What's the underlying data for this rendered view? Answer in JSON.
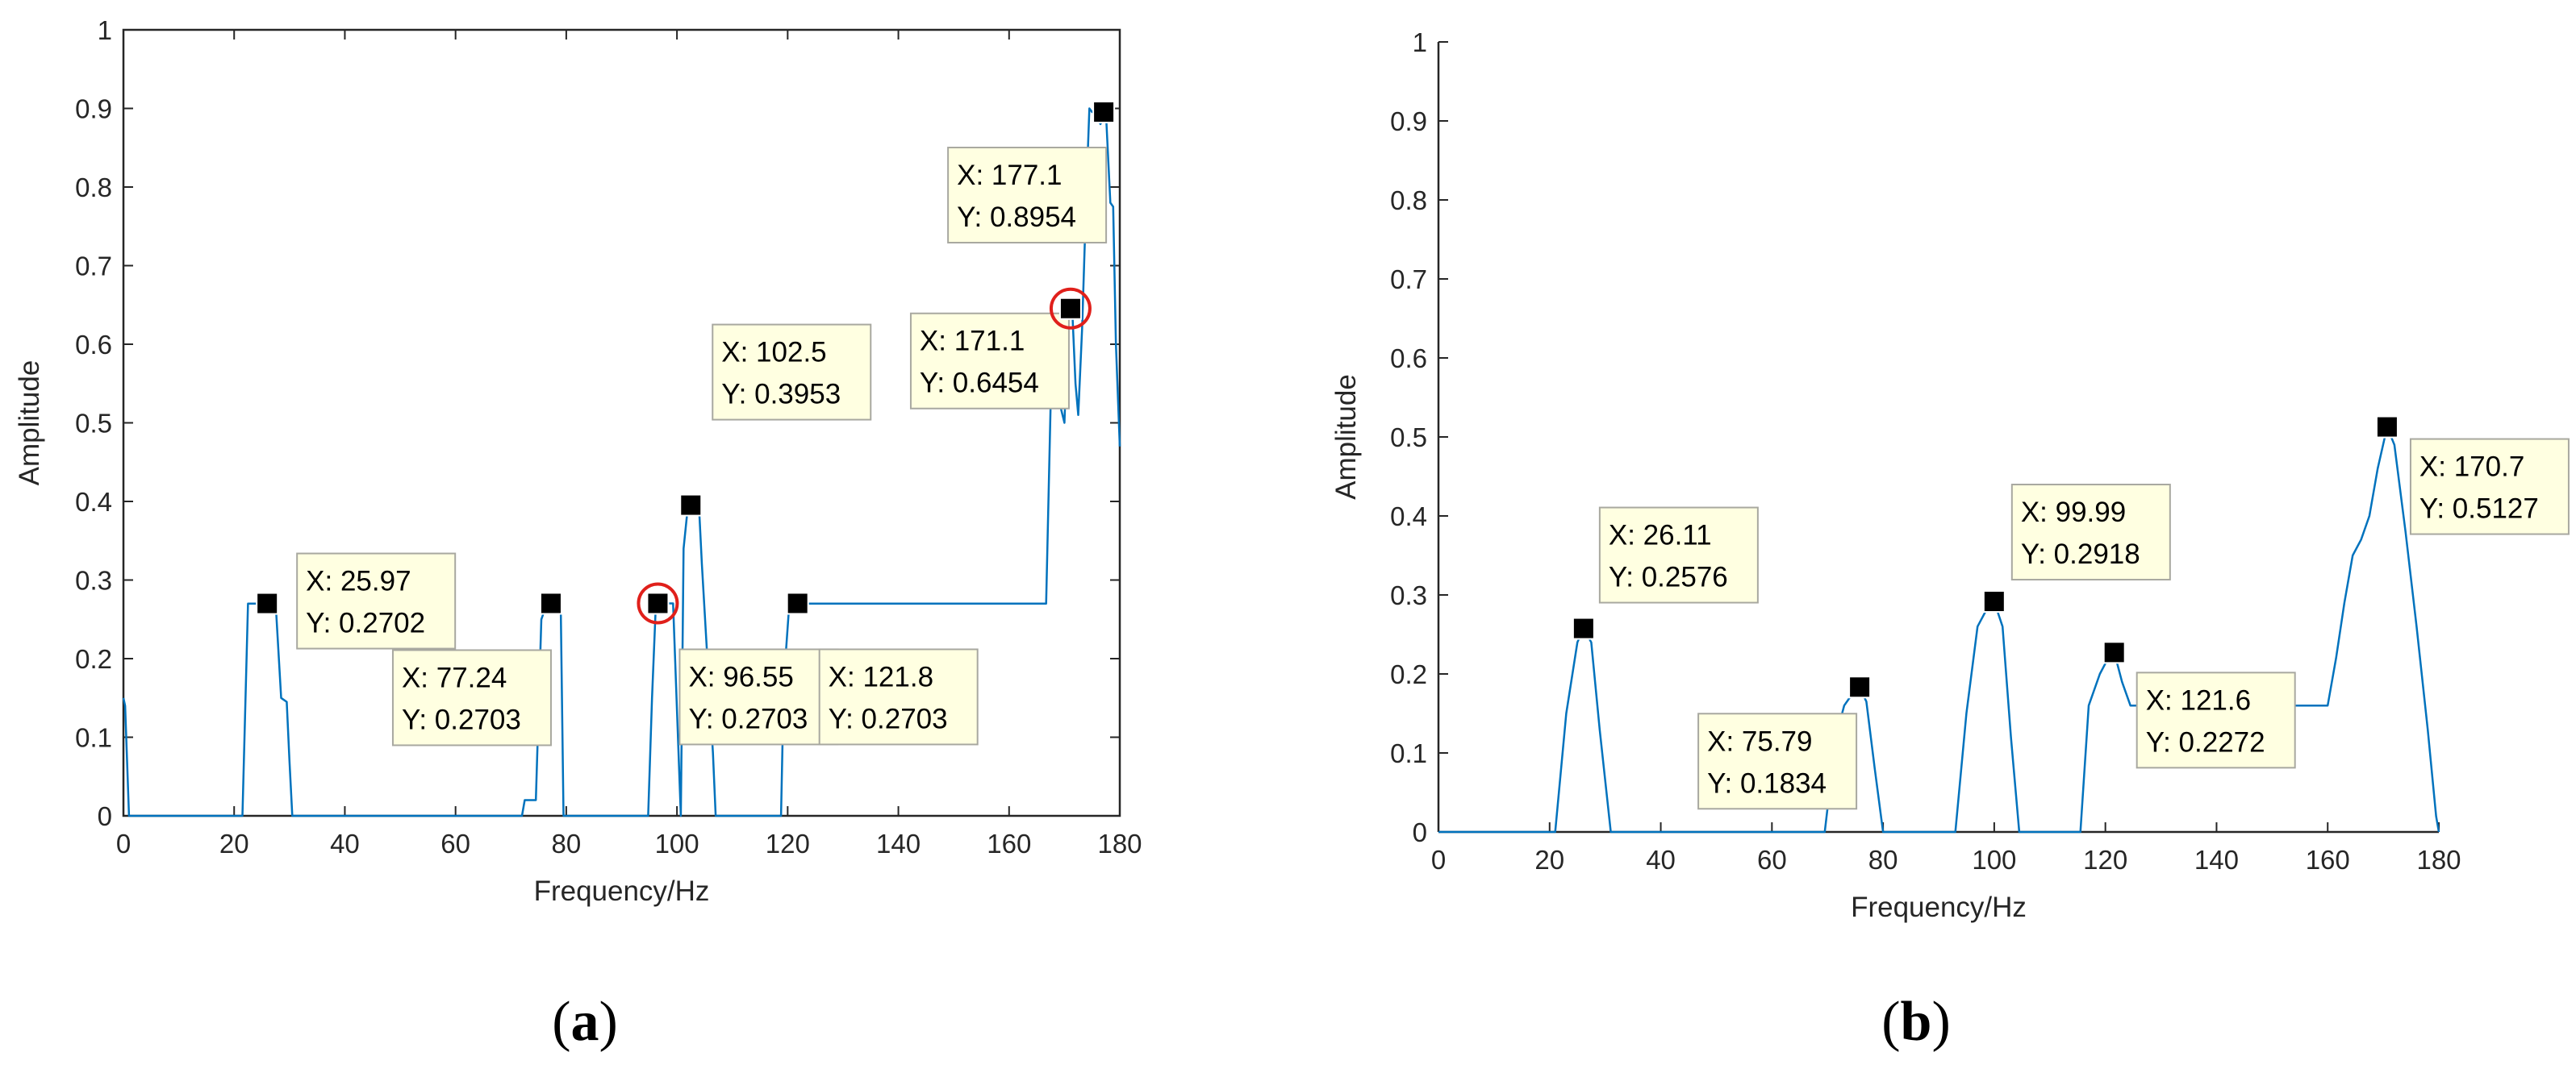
{
  "chart_data": [
    {
      "type": "line",
      "panel_label": "(a)",
      "xlabel": "Frequency/Hz",
      "ylabel": "Amplitude",
      "xlim": [
        0,
        180
      ],
      "ylim": [
        0,
        1
      ],
      "xticks": [
        0,
        20,
        40,
        60,
        80,
        100,
        120,
        140,
        160,
        180
      ],
      "yticks": [
        0,
        0.1,
        0.2,
        0.3,
        0.4,
        0.5,
        0.6,
        0.7,
        0.8,
        0.9,
        1
      ],
      "grid": false,
      "line_color": "#0072BD",
      "series": [
        {
          "x": [
            0,
            0.3,
            1,
            21.5,
            22.5,
            24,
            25,
            27.5,
            28.5,
            29.5,
            30,
            30.5,
            72,
            72.5,
            74.5,
            75.5,
            76.5,
            78,
            79,
            79.5,
            94.8,
            95.5,
            96.2,
            97.2,
            99.3,
            100.7,
            101.2,
            102,
            103,
            104,
            104.5,
            105.5,
            106.5,
            107,
            118.8,
            119.3,
            120.3,
            121,
            122.3,
            124,
            130,
            166.7,
            167.5,
            168.5,
            169.3,
            170,
            170.7,
            171.4,
            172,
            172.5,
            173.2,
            174,
            174.5,
            175,
            175.7,
            176.5,
            177.5,
            178.3,
            178.8,
            179.3,
            180
          ],
          "y": [
            0.15,
            0.14,
            0,
            0,
            0.27,
            0.27,
            0.27,
            0.27,
            0.15,
            0.145,
            0.07,
            0,
            0,
            0.02,
            0.02,
            0.25,
            0.27,
            0.27,
            0.27,
            0,
            0,
            0.15,
            0.2703,
            0.2703,
            0.2703,
            0,
            0.34,
            0.3953,
            0.3953,
            0.39,
            0.32,
            0.2,
            0.08,
            0,
            0,
            0.17,
            0.2703,
            0.2703,
            0.2703,
            0.27,
            0.27,
            0.27,
            0.52,
            0.52,
            0.52,
            0.5,
            0.6454,
            0.6454,
            0.55,
            0.51,
            0.62,
            0.8,
            0.9,
            0.8954,
            0.8954,
            0.88,
            0.8954,
            0.78,
            0.775,
            0.6,
            0.47
          ]
        }
      ],
      "datatips": [
        {
          "x": 25.97,
          "y": 0.2702,
          "label_x": "X: 25.97",
          "label_y": "Y: 0.2702",
          "circled": false
        },
        {
          "x": 77.24,
          "y": 0.2703,
          "label_x": "X: 77.24",
          "label_y": "Y: 0.2703",
          "circled": false
        },
        {
          "x": 96.55,
          "y": 0.2703,
          "label_x": "X: 96.55",
          "label_y": "Y: 0.2703",
          "circled": true
        },
        {
          "x": 102.5,
          "y": 0.3953,
          "label_x": "X: 102.5",
          "label_y": "Y: 0.3953",
          "circled": false
        },
        {
          "x": 121.8,
          "y": 0.2703,
          "label_x": "X: 121.8",
          "label_y": "Y: 0.2703",
          "circled": false
        },
        {
          "x": 171.1,
          "y": 0.6454,
          "label_x": "X: 171.1",
          "label_y": "Y: 0.6454",
          "circled": true
        },
        {
          "x": 177.1,
          "y": 0.8954,
          "label_x": "X: 177.1",
          "label_y": "Y: 0.8954",
          "circled": false
        }
      ]
    },
    {
      "type": "line",
      "panel_label": "(b)",
      "xlabel": "Frequency/Hz",
      "ylabel": "Amplitude",
      "xlim": [
        0,
        180
      ],
      "ylim": [
        0,
        1
      ],
      "xticks": [
        0,
        20,
        40,
        60,
        80,
        100,
        120,
        140,
        160,
        180
      ],
      "yticks": [
        0,
        0.1,
        0.2,
        0.3,
        0.4,
        0.5,
        0.6,
        0.7,
        0.8,
        0.9,
        1
      ],
      "grid": false,
      "line_color": "#0072BD",
      "series": [
        {
          "x": [
            0,
            21,
            23,
            25,
            26.11,
            27.5,
            29,
            31,
            69.5,
            71.5,
            73,
            74.5,
            75.79,
            77,
            78.5,
            80,
            93,
            95,
            97,
            98.5,
            99.99,
            101.5,
            103,
            104.5,
            115.5,
            117,
            119,
            120.5,
            121.6,
            123,
            124.5,
            158,
            160,
            161.5,
            163,
            164.5,
            166,
            167.5,
            169,
            170.7,
            172,
            174,
            176,
            178,
            179.5,
            180
          ],
          "y": [
            0,
            0,
            0.15,
            0.24,
            0.2576,
            0.24,
            0.13,
            0,
            0,
            0.12,
            0.16,
            0.175,
            0.1834,
            0.165,
            0.08,
            0,
            0,
            0.15,
            0.26,
            0.28,
            0.2918,
            0.26,
            0.12,
            0,
            0,
            0.16,
            0.2,
            0.22,
            0.2272,
            0.19,
            0.16,
            0.16,
            0.16,
            0.22,
            0.29,
            0.35,
            0.37,
            0.4,
            0.46,
            0.5127,
            0.49,
            0.38,
            0.26,
            0.13,
            0.02,
            0
          ]
        }
      ],
      "datatips": [
        {
          "x": 26.11,
          "y": 0.2576,
          "label_x": "X: 26.11",
          "label_y": "Y: 0.2576",
          "circled": false
        },
        {
          "x": 75.79,
          "y": 0.1834,
          "label_x": "X: 75.79",
          "label_y": "Y: 0.1834",
          "circled": false
        },
        {
          "x": 99.99,
          "y": 0.2918,
          "label_x": "X: 99.99",
          "label_y": "Y: 0.2918",
          "circled": false
        },
        {
          "x": 121.6,
          "y": 0.2272,
          "label_x": "X: 121.6",
          "label_y": "Y: 0.2272",
          "circled": false
        },
        {
          "x": 170.7,
          "y": 0.5127,
          "label_x": "X: 170.7",
          "label_y": "Y: 0.5127",
          "circled": false
        }
      ]
    }
  ]
}
